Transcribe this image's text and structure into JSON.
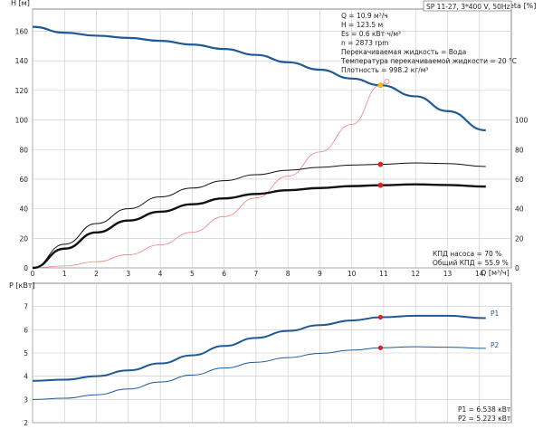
{
  "header": {
    "title": "SP 11-27, 3*400 V, 50Hz"
  },
  "info_block": {
    "lines": [
      "Q = 10.9 м³/ч",
      "H = 123.5 м",
      "Es = 0.6 кВт·ч/м³",
      "n = 2873 rpm",
      "Перекачиваемая жидкость = Вода",
      "Температура перекачиваемой жидкости = 20 °C",
      "Плотность = 998.2 кг/м³"
    ]
  },
  "eff_block": {
    "lines": [
      "КПД насоса = 70 %",
      "Общий КПД = 55.9 %"
    ]
  },
  "power_block": {
    "lines": [
      "P1 = 6.538 кВт",
      "P2 = 5.223 кВт"
    ]
  },
  "colors": {
    "head": "#1f5a96",
    "system": "#f08080",
    "black": "#111111",
    "marker": "#e02020",
    "duty": "#f5c400",
    "grid": "#c8c8c8"
  },
  "chart_data": [
    {
      "type": "line",
      "title": "",
      "xlabel": "Q [м³/ч]",
      "ylabel": "H [м]",
      "y2label": "eta [%]",
      "xlim": [
        0,
        15
      ],
      "ylim": [
        0,
        175
      ],
      "x_ticks": [
        "0",
        "1",
        "2",
        "3",
        "4",
        "5",
        "6",
        "7",
        "8",
        "9",
        "10",
        "11",
        "12",
        "13",
        "14"
      ],
      "y_ticks": [
        "0",
        "20",
        "40",
        "60",
        "80",
        "100",
        "120",
        "140",
        "160"
      ],
      "y2_ticks": [
        "0",
        "20",
        "40",
        "60",
        "80",
        "100"
      ],
      "series": [
        {
          "name": "",
          "color": "#1f5a96",
          "width": 2.2,
          "x": [
            0,
            1,
            2,
            3,
            4,
            5,
            6,
            7,
            8,
            9,
            10,
            10.9,
            12,
            13,
            14.2
          ],
          "y": [
            163,
            159,
            157,
            155.5,
            153.5,
            151,
            148,
            144,
            139,
            134,
            128,
            123.5,
            116,
            106,
            93
          ]
        },
        {
          "name": "",
          "color": "#f08080",
          "width": 0.8,
          "x": [
            0,
            1,
            2,
            3,
            4,
            5,
            6,
            7,
            8,
            9,
            10,
            10.9,
            11.1
          ],
          "y": [
            0,
            1.3,
            4.2,
            8.9,
            15.6,
            24.1,
            34.7,
            47.3,
            62,
            78.4,
            97,
            123.5,
            126
          ]
        },
        {
          "name": "",
          "color": "#111111",
          "width": 1.0,
          "x": [
            0,
            1,
            2,
            3,
            4,
            5,
            6,
            7,
            8,
            9,
            10,
            10.9,
            12,
            13,
            14.2
          ],
          "y": [
            0,
            16,
            30,
            40,
            48,
            54,
            59,
            63,
            66,
            68,
            69.5,
            70,
            71,
            70.5,
            68.5
          ]
        },
        {
          "name": "",
          "color": "#111111",
          "width": 2.4,
          "x": [
            0,
            1,
            2,
            3,
            4,
            5,
            6,
            7,
            8,
            9,
            10,
            10.9,
            12,
            13,
            14.2
          ],
          "y": [
            0,
            13,
            24,
            32,
            38,
            43,
            47,
            50,
            52.5,
            54,
            55.3,
            55.9,
            56.5,
            56,
            55
          ]
        }
      ],
      "markers": [
        {
          "x": 10.9,
          "y": 70,
          "color": "#e02020"
        },
        {
          "x": 10.9,
          "y": 55.9,
          "color": "#e02020"
        },
        {
          "x": 10.9,
          "y": 123.5,
          "color": "#f5c400"
        }
      ]
    },
    {
      "type": "line",
      "title": "",
      "ylabel": "P [кВт]",
      "xlim": [
        0,
        15
      ],
      "ylim": [
        2,
        8
      ],
      "y_ticks": [
        "2",
        "3",
        "4",
        "5",
        "6",
        "7"
      ],
      "series": [
        {
          "name": "P1",
          "color": "#1f5a96",
          "width": 2.0,
          "x": [
            0,
            1,
            2,
            3,
            4,
            5,
            6,
            7,
            8,
            9,
            10,
            10.9,
            12,
            13,
            14.2
          ],
          "y": [
            3.8,
            3.85,
            4.0,
            4.25,
            4.55,
            4.9,
            5.3,
            5.65,
            5.95,
            6.2,
            6.4,
            6.538,
            6.6,
            6.6,
            6.5
          ]
        },
        {
          "name": "P2",
          "color": "#1f5a96",
          "width": 1.0,
          "x": [
            0,
            1,
            2,
            3,
            4,
            5,
            6,
            7,
            8,
            9,
            10,
            10.9,
            12,
            13,
            14.2
          ],
          "y": [
            3.0,
            3.05,
            3.2,
            3.45,
            3.75,
            4.05,
            4.35,
            4.6,
            4.8,
            4.98,
            5.12,
            5.223,
            5.27,
            5.25,
            5.2
          ]
        }
      ],
      "markers": [
        {
          "x": 10.9,
          "y": 6.538,
          "color": "#e02020"
        },
        {
          "x": 10.9,
          "y": 5.223,
          "color": "#e02020"
        }
      ]
    }
  ]
}
